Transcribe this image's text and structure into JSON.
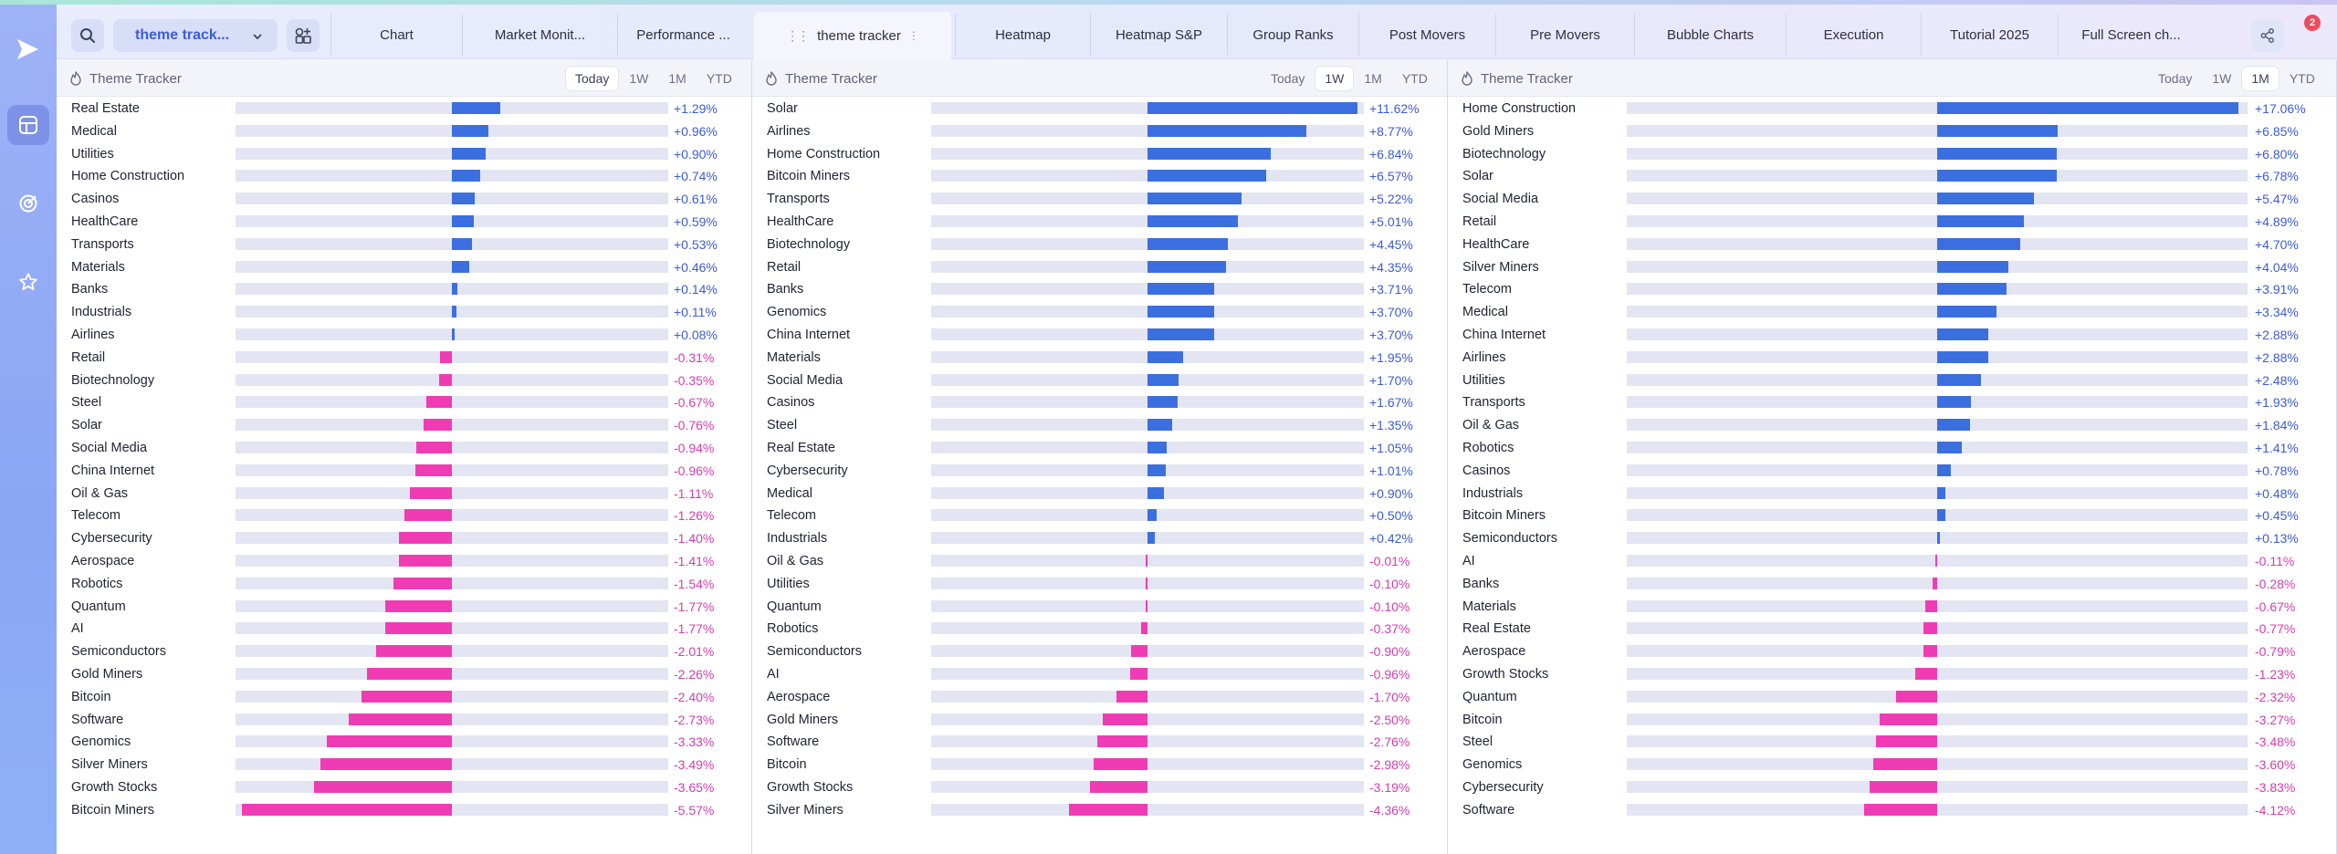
{
  "app": {
    "workspace_label": "theme track...",
    "notification_count": "2"
  },
  "tabs": [
    {
      "label": "Chart",
      "active": false
    },
    {
      "label": "Market Monit...",
      "active": false
    },
    {
      "label": "Performance ...",
      "active": false
    },
    {
      "label": "theme tracker",
      "active": true
    },
    {
      "label": "Heatmap",
      "active": false
    },
    {
      "label": "Heatmap S&P",
      "active": false
    },
    {
      "label": "Group Ranks",
      "active": false
    },
    {
      "label": "Post Movers",
      "active": false
    },
    {
      "label": "Pre Movers",
      "active": false
    },
    {
      "label": "Bubble Charts",
      "active": false
    },
    {
      "label": "Execution",
      "active": false
    },
    {
      "label": "Tutorial 2025",
      "active": false
    },
    {
      "label": "Full Screen ch...",
      "active": false
    }
  ],
  "colors": {
    "positive": "#3b6fe0",
    "negative": "#f03cb4",
    "positive_text": "#3b5bdb",
    "negative_text": "#d63cae"
  },
  "icons": {
    "rail": [
      "play-logo-icon",
      "layout-icon",
      "target-icon",
      "star-icon"
    ],
    "toolbar": [
      "search-icon",
      "chevron-down-icon",
      "add-widget-icon",
      "share-icon",
      "bell-icon"
    ]
  },
  "panels": [
    {
      "title": "Theme Tracker",
      "periods": [
        "Today",
        "1W",
        "1M",
        "YTD"
      ],
      "selected_period": "Today",
      "max_abs": 5.57,
      "rows": [
        {
          "name": "Real Estate",
          "value": 1.29,
          "label": "+1.29%"
        },
        {
          "name": "Medical",
          "value": 0.96,
          "label": "+0.96%"
        },
        {
          "name": "Utilities",
          "value": 0.9,
          "label": "+0.90%"
        },
        {
          "name": "Home Construction",
          "value": 0.74,
          "label": "+0.74%"
        },
        {
          "name": "Casinos",
          "value": 0.61,
          "label": "+0.61%"
        },
        {
          "name": "HealthCare",
          "value": 0.59,
          "label": "+0.59%"
        },
        {
          "name": "Transports",
          "value": 0.53,
          "label": "+0.53%"
        },
        {
          "name": "Materials",
          "value": 0.46,
          "label": "+0.46%"
        },
        {
          "name": "Banks",
          "value": 0.14,
          "label": "+0.14%"
        },
        {
          "name": "Industrials",
          "value": 0.11,
          "label": "+0.11%"
        },
        {
          "name": "Airlines",
          "value": 0.08,
          "label": "+0.08%"
        },
        {
          "name": "Retail",
          "value": -0.31,
          "label": "-0.31%"
        },
        {
          "name": "Biotechnology",
          "value": -0.35,
          "label": "-0.35%"
        },
        {
          "name": "Steel",
          "value": -0.67,
          "label": "-0.67%"
        },
        {
          "name": "Solar",
          "value": -0.76,
          "label": "-0.76%"
        },
        {
          "name": "Social Media",
          "value": -0.94,
          "label": "-0.94%"
        },
        {
          "name": "China Internet",
          "value": -0.96,
          "label": "-0.96%"
        },
        {
          "name": "Oil & Gas",
          "value": -1.11,
          "label": "-1.11%"
        },
        {
          "name": "Telecom",
          "value": -1.26,
          "label": "-1.26%"
        },
        {
          "name": "Cybersecurity",
          "value": -1.4,
          "label": "-1.40%"
        },
        {
          "name": "Aerospace",
          "value": -1.41,
          "label": "-1.41%"
        },
        {
          "name": "Robotics",
          "value": -1.54,
          "label": "-1.54%"
        },
        {
          "name": "Quantum",
          "value": -1.77,
          "label": "-1.77%"
        },
        {
          "name": "AI",
          "value": -1.77,
          "label": "-1.77%"
        },
        {
          "name": "Semiconductors",
          "value": -2.01,
          "label": "-2.01%"
        },
        {
          "name": "Gold Miners",
          "value": -2.26,
          "label": "-2.26%"
        },
        {
          "name": "Bitcoin",
          "value": -2.4,
          "label": "-2.40%"
        },
        {
          "name": "Software",
          "value": -2.73,
          "label": "-2.73%"
        },
        {
          "name": "Genomics",
          "value": -3.33,
          "label": "-3.33%"
        },
        {
          "name": "Silver Miners",
          "value": -3.49,
          "label": "-3.49%"
        },
        {
          "name": "Growth Stocks",
          "value": -3.65,
          "label": "-3.65%"
        },
        {
          "name": "Bitcoin Miners",
          "value": -5.57,
          "label": "-5.57%"
        }
      ]
    },
    {
      "title": "Theme Tracker",
      "periods": [
        "Today",
        "1W",
        "1M",
        "YTD"
      ],
      "selected_period": "1W",
      "max_abs": 11.62,
      "rows": [
        {
          "name": "Solar",
          "value": 11.62,
          "label": "+11.62%"
        },
        {
          "name": "Airlines",
          "value": 8.77,
          "label": "+8.77%"
        },
        {
          "name": "Home Construction",
          "value": 6.84,
          "label": "+6.84%"
        },
        {
          "name": "Bitcoin Miners",
          "value": 6.57,
          "label": "+6.57%"
        },
        {
          "name": "Transports",
          "value": 5.22,
          "label": "+5.22%"
        },
        {
          "name": "HealthCare",
          "value": 5.01,
          "label": "+5.01%"
        },
        {
          "name": "Biotechnology",
          "value": 4.45,
          "label": "+4.45%"
        },
        {
          "name": "Retail",
          "value": 4.35,
          "label": "+4.35%"
        },
        {
          "name": "Banks",
          "value": 3.71,
          "label": "+3.71%"
        },
        {
          "name": "Genomics",
          "value": 3.7,
          "label": "+3.70%"
        },
        {
          "name": "China Internet",
          "value": 3.7,
          "label": "+3.70%"
        },
        {
          "name": "Materials",
          "value": 1.95,
          "label": "+1.95%"
        },
        {
          "name": "Social Media",
          "value": 1.7,
          "label": "+1.70%"
        },
        {
          "name": "Casinos",
          "value": 1.67,
          "label": "+1.67%"
        },
        {
          "name": "Steel",
          "value": 1.35,
          "label": "+1.35%"
        },
        {
          "name": "Real Estate",
          "value": 1.05,
          "label": "+1.05%"
        },
        {
          "name": "Cybersecurity",
          "value": 1.01,
          "label": "+1.01%"
        },
        {
          "name": "Medical",
          "value": 0.9,
          "label": "+0.90%"
        },
        {
          "name": "Telecom",
          "value": 0.5,
          "label": "+0.50%"
        },
        {
          "name": "Industrials",
          "value": 0.42,
          "label": "+0.42%"
        },
        {
          "name": "Oil & Gas",
          "value": -0.01,
          "label": "-0.01%"
        },
        {
          "name": "Utilities",
          "value": -0.1,
          "label": "-0.10%"
        },
        {
          "name": "Quantum",
          "value": -0.1,
          "label": "-0.10%"
        },
        {
          "name": "Robotics",
          "value": -0.37,
          "label": "-0.37%"
        },
        {
          "name": "Semiconductors",
          "value": -0.9,
          "label": "-0.90%"
        },
        {
          "name": "AI",
          "value": -0.96,
          "label": "-0.96%"
        },
        {
          "name": "Aerospace",
          "value": -1.7,
          "label": "-1.70%"
        },
        {
          "name": "Gold Miners",
          "value": -2.5,
          "label": "-2.50%"
        },
        {
          "name": "Software",
          "value": -2.76,
          "label": "-2.76%"
        },
        {
          "name": "Bitcoin",
          "value": -2.98,
          "label": "-2.98%"
        },
        {
          "name": "Growth Stocks",
          "value": -3.19,
          "label": "-3.19%"
        },
        {
          "name": "Silver Miners",
          "value": -4.36,
          "label": "-4.36%"
        }
      ]
    },
    {
      "title": "Theme Tracker",
      "periods": [
        "Today",
        "1W",
        "1M",
        "YTD"
      ],
      "selected_period": "1M",
      "max_abs": 17.06,
      "rows": [
        {
          "name": "Home Construction",
          "value": 17.06,
          "label": "+17.06%"
        },
        {
          "name": "Gold Miners",
          "value": 6.85,
          "label": "+6.85%"
        },
        {
          "name": "Biotechnology",
          "value": 6.8,
          "label": "+6.80%"
        },
        {
          "name": "Solar",
          "value": 6.78,
          "label": "+6.78%"
        },
        {
          "name": "Social Media",
          "value": 5.47,
          "label": "+5.47%"
        },
        {
          "name": "Retail",
          "value": 4.89,
          "label": "+4.89%"
        },
        {
          "name": "HealthCare",
          "value": 4.7,
          "label": "+4.70%"
        },
        {
          "name": "Silver Miners",
          "value": 4.04,
          "label": "+4.04%"
        },
        {
          "name": "Telecom",
          "value": 3.91,
          "label": "+3.91%"
        },
        {
          "name": "Medical",
          "value": 3.34,
          "label": "+3.34%"
        },
        {
          "name": "China Internet",
          "value": 2.88,
          "label": "+2.88%"
        },
        {
          "name": "Airlines",
          "value": 2.88,
          "label": "+2.88%"
        },
        {
          "name": "Utilities",
          "value": 2.48,
          "label": "+2.48%"
        },
        {
          "name": "Transports",
          "value": 1.93,
          "label": "+1.93%"
        },
        {
          "name": "Oil & Gas",
          "value": 1.84,
          "label": "+1.84%"
        },
        {
          "name": "Robotics",
          "value": 1.41,
          "label": "+1.41%"
        },
        {
          "name": "Casinos",
          "value": 0.78,
          "label": "+0.78%"
        },
        {
          "name": "Industrials",
          "value": 0.48,
          "label": "+0.48%"
        },
        {
          "name": "Bitcoin Miners",
          "value": 0.45,
          "label": "+0.45%"
        },
        {
          "name": "Semiconductors",
          "value": 0.13,
          "label": "+0.13%"
        },
        {
          "name": "AI",
          "value": -0.11,
          "label": "-0.11%"
        },
        {
          "name": "Banks",
          "value": -0.28,
          "label": "-0.28%"
        },
        {
          "name": "Materials",
          "value": -0.67,
          "label": "-0.67%"
        },
        {
          "name": "Real Estate",
          "value": -0.77,
          "label": "-0.77%"
        },
        {
          "name": "Aerospace",
          "value": -0.79,
          "label": "-0.79%"
        },
        {
          "name": "Growth Stocks",
          "value": -1.23,
          "label": "-1.23%"
        },
        {
          "name": "Quantum",
          "value": -2.32,
          "label": "-2.32%"
        },
        {
          "name": "Bitcoin",
          "value": -3.27,
          "label": "-3.27%"
        },
        {
          "name": "Steel",
          "value": -3.48,
          "label": "-3.48%"
        },
        {
          "name": "Genomics",
          "value": -3.6,
          "label": "-3.60%"
        },
        {
          "name": "Cybersecurity",
          "value": -3.83,
          "label": "-3.83%"
        },
        {
          "name": "Software",
          "value": -4.12,
          "label": "-4.12%"
        }
      ]
    }
  ]
}
